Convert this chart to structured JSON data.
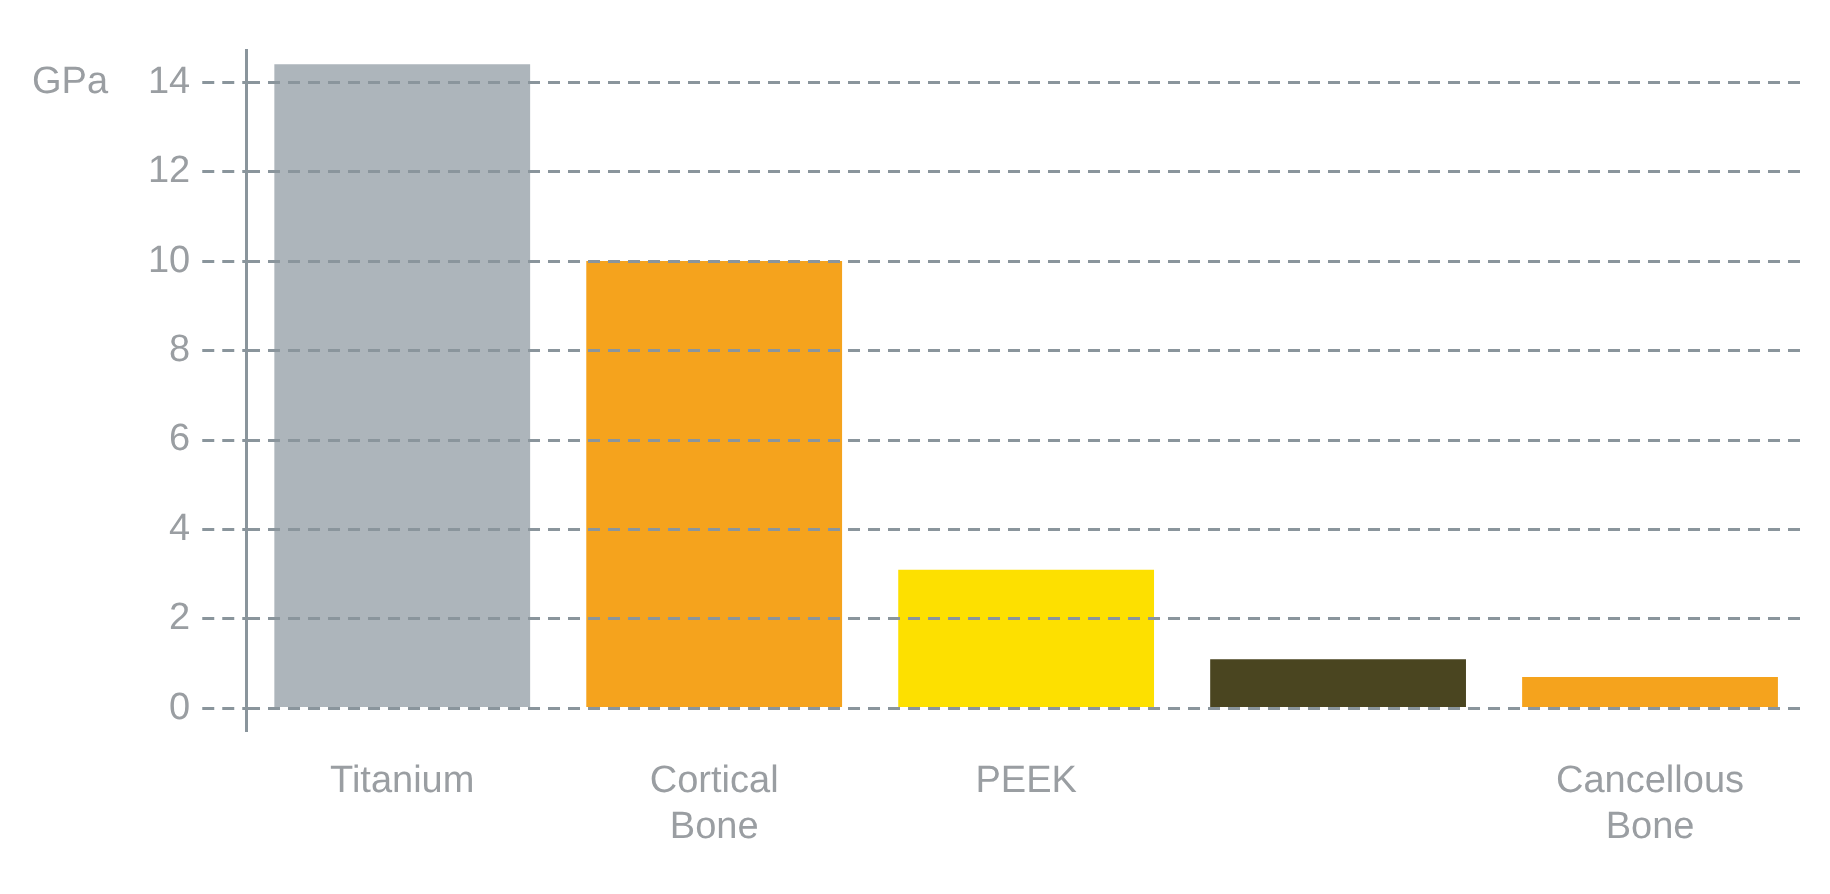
{
  "chart_data": {
    "type": "bar",
    "ylabel": "GPa",
    "categories": [
      "Titanium",
      "Cortical Bone",
      "PEEK",
      null,
      "Cancellous Bone"
    ],
    "values": [
      14.4,
      10,
      3.1,
      1.1,
      0.7
    ],
    "colors": [
      "#adb5bb",
      "#f5a31d",
      "#fde000",
      "#4a4520",
      "#f5a31d"
    ],
    "ylim": [
      -0.5,
      14.7
    ],
    "yticks": [
      0,
      2,
      4,
      6,
      8,
      10,
      12,
      14
    ],
    "grid": "y"
  }
}
